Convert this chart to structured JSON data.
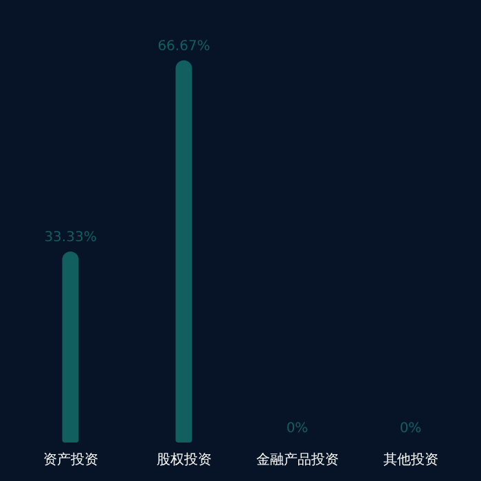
{
  "chart_data": {
    "type": "bar",
    "categories": [
      "资产投资",
      "股权投资",
      "金融产品投资",
      "其他投资"
    ],
    "values": [
      33.33,
      66.67,
      0,
      0
    ],
    "value_labels": [
      "33.33%",
      "66.67%",
      "0%",
      "0%"
    ],
    "color": "#11605f",
    "tick_labels": "x"
  }
}
